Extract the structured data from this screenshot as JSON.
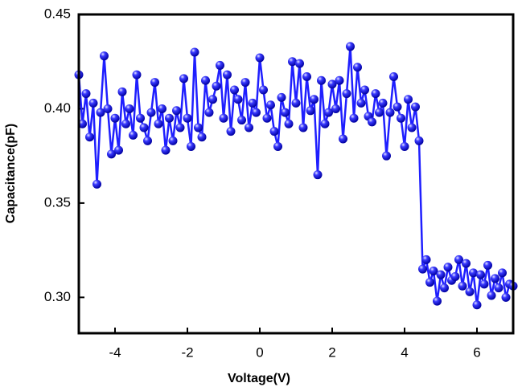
{
  "chart_data": {
    "type": "line",
    "xlabel": "Voltage(V)",
    "ylabel": "Capacitance(pF)",
    "xlim": [
      -5,
      7
    ],
    "ylim": [
      0.281,
      0.45
    ],
    "xticks": [
      -4,
      -2,
      0,
      2,
      4,
      6
    ],
    "yticks": [
      {
        "value": 0.3,
        "label": "0.30"
      },
      0.35,
      {
        "value": 0.4,
        "label": "0.40"
      },
      0.45
    ],
    "x": [
      -5,
      -4.9,
      -4.8,
      -4.7,
      -4.6,
      -4.5,
      -4.4,
      -4.3,
      -4.2,
      -4.1,
      -4,
      -3.9,
      -3.8,
      -3.7,
      -3.6,
      -3.5,
      -3.4,
      -3.3,
      -3.2,
      -3.1,
      -3,
      -2.9,
      -2.8,
      -2.7,
      -2.6,
      -2.5,
      -2.4,
      -2.3,
      -2.2,
      -2.1,
      -2,
      -1.9,
      -1.8,
      -1.7,
      -1.6,
      -1.5,
      -1.4,
      -1.3,
      -1.2,
      -1.1,
      -1,
      -0.9,
      -0.8,
      -0.7,
      -0.6,
      -0.5,
      -0.4,
      -0.3,
      -0.2,
      -0.1,
      0,
      0.1,
      0.2,
      0.3,
      0.4,
      0.5,
      0.6,
      0.7,
      0.8,
      0.9,
      1,
      1.1,
      1.2,
      1.3,
      1.4,
      1.5,
      1.6,
      1.7,
      1.8,
      1.9,
      2,
      2.1,
      2.2,
      2.3,
      2.4,
      2.5,
      2.6,
      2.7,
      2.8,
      2.9,
      3,
      3.1,
      3.2,
      3.3,
      3.4,
      3.5,
      3.6,
      3.7,
      3.8,
      3.9,
      4,
      4.1,
      4.2,
      4.3,
      4.4,
      4.5,
      4.6,
      4.7,
      4.8,
      4.9,
      5,
      5.1,
      5.2,
      5.3,
      5.4,
      5.5,
      5.6,
      5.7,
      5.8,
      5.9,
      6,
      6.1,
      6.2,
      6.3,
      6.4,
      6.5,
      6.6,
      6.7,
      6.8,
      6.9,
      7
    ],
    "series": [
      {
        "color": "#1f1fff",
        "values": [
          0.418,
          0.392,
          0.408,
          0.385,
          0.403,
          0.36,
          0.398,
          0.428,
          0.4,
          0.376,
          0.395,
          0.378,
          0.409,
          0.392,
          0.4,
          0.386,
          0.418,
          0.395,
          0.39,
          0.383,
          0.398,
          0.414,
          0.392,
          0.4,
          0.378,
          0.395,
          0.383,
          0.399,
          0.39,
          0.416,
          0.395,
          0.38,
          0.43,
          0.39,
          0.385,
          0.415,
          0.398,
          0.405,
          0.412,
          0.423,
          0.395,
          0.418,
          0.388,
          0.41,
          0.405,
          0.394,
          0.414,
          0.39,
          0.403,
          0.398,
          0.427,
          0.41,
          0.395,
          0.402,
          0.388,
          0.38,
          0.406,
          0.398,
          0.392,
          0.425,
          0.403,
          0.424,
          0.39,
          0.417,
          0.399,
          0.405,
          0.365,
          0.415,
          0.392,
          0.398,
          0.413,
          0.4,
          0.415,
          0.384,
          0.408,
          0.433,
          0.395,
          0.422,
          0.403,
          0.41,
          0.396,
          0.393,
          0.408,
          0.398,
          0.403,
          0.375,
          0.398,
          0.417,
          0.401,
          0.395,
          0.38,
          0.405,
          0.39,
          0.401,
          0.383,
          0.315,
          0.32,
          0.308,
          0.314,
          0.298,
          0.312,
          0.305,
          0.316,
          0.309,
          0.311,
          0.32,
          0.306,
          0.318,
          0.303,
          0.313,
          0.296,
          0.312,
          0.307,
          0.317,
          0.301,
          0.31,
          0.305,
          0.313,
          0.3,
          0.307,
          0.306
        ]
      }
    ]
  }
}
